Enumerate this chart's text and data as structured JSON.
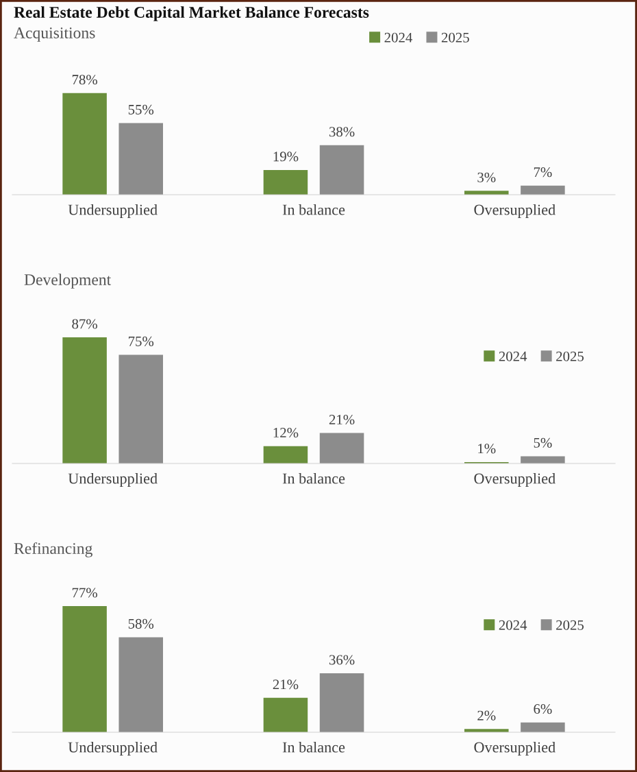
{
  "chart_data": [
    {
      "type": "bar",
      "title": "Real Estate Debt Capital Market Balance Forecasts",
      "subtitle": "Acquisitions",
      "categories": [
        "Undersupplied",
        "In balance",
        "Oversupplied"
      ],
      "series": [
        {
          "name": "2024",
          "color": "#6a8f3c",
          "values": [
            78,
            19,
            3
          ],
          "value_labels": [
            "78%",
            "19%",
            "3%"
          ]
        },
        {
          "name": "2025",
          "color": "#8c8c8c",
          "values": [
            55,
            38,
            7
          ],
          "value_labels": [
            "55%",
            "38%",
            "7%"
          ]
        }
      ],
      "legend": "top right"
    },
    {
      "type": "bar",
      "title": "Development",
      "categories": [
        "Undersupplied",
        "In balance",
        "Oversupplied"
      ],
      "series": [
        {
          "name": "2024",
          "color": "#6a8f3c",
          "values": [
            87,
            12,
            1
          ],
          "value_labels": [
            "87%",
            "12%",
            "1%"
          ]
        },
        {
          "name": "2025",
          "color": "#8c8c8c",
          "values": [
            75,
            21,
            5
          ],
          "value_labels": [
            "75%",
            "21%",
            "5%"
          ]
        }
      ],
      "legend": "right"
    },
    {
      "type": "bar",
      "title": "Refinancing",
      "categories": [
        "Undersupplied",
        "In balance",
        "Oversupplied"
      ],
      "series": [
        {
          "name": "2024",
          "color": "#6a8f3c",
          "values": [
            77,
            21,
            2
          ],
          "value_labels": [
            "77%",
            "21%",
            "2%"
          ]
        },
        {
          "name": "2025",
          "color": "#8c8c8c",
          "values": [
            58,
            36,
            6
          ],
          "value_labels": [
            "58%",
            "36%",
            "6%"
          ]
        }
      ],
      "legend": "right"
    }
  ]
}
